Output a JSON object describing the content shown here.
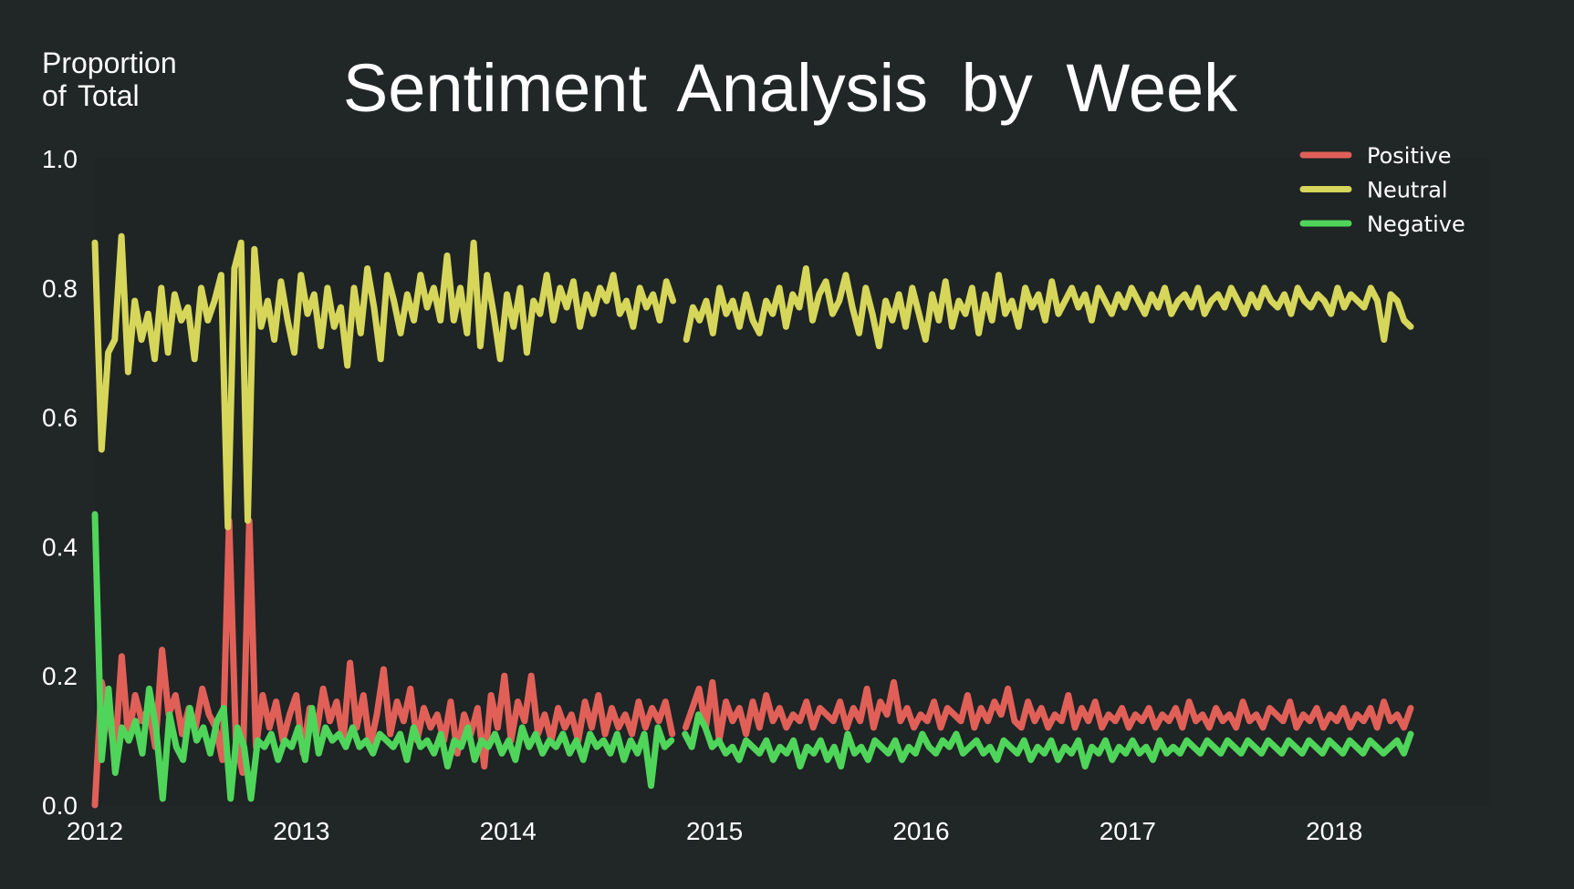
{
  "chart_data": {
    "type": "line",
    "title": "Sentiment Analysis by Week",
    "ylabel_lines": [
      "Proportion",
      "of  Total"
    ],
    "xlabel": "",
    "x_start": 2012.0,
    "x_end": 2018.37,
    "xlim": [
      2012.0,
      2018.75
    ],
    "ylim": [
      0.0,
      1.0
    ],
    "x_ticks": [
      2012,
      2013,
      2014,
      2015,
      2016,
      2017,
      2018
    ],
    "y_ticks": [
      "0.0",
      "0.2",
      "0.4",
      "0.6",
      "0.8",
      "1.0"
    ],
    "grid": false,
    "legend_position": "top-right",
    "gap": [
      2014.82,
      2014.85
    ],
    "series": [
      {
        "name": "Positive",
        "color": "#e06058",
        "values": [
          0.0,
          0.19,
          0.14,
          0.08,
          0.23,
          0.1,
          0.17,
          0.13,
          0.15,
          0.09,
          0.24,
          0.14,
          0.17,
          0.11,
          0.15,
          0.12,
          0.18,
          0.14,
          0.12,
          0.07,
          0.44,
          0.1,
          0.05,
          0.44,
          0.09,
          0.17,
          0.12,
          0.16,
          0.1,
          0.14,
          0.17,
          0.08,
          0.15,
          0.11,
          0.18,
          0.13,
          0.16,
          0.1,
          0.22,
          0.12,
          0.17,
          0.09,
          0.14,
          0.21,
          0.11,
          0.16,
          0.13,
          0.18,
          0.1,
          0.15,
          0.12,
          0.14,
          0.1,
          0.16,
          0.08,
          0.14,
          0.11,
          0.15,
          0.06,
          0.17,
          0.12,
          0.2,
          0.1,
          0.16,
          0.13,
          0.2,
          0.11,
          0.14,
          0.1,
          0.15,
          0.12,
          0.14,
          0.1,
          0.16,
          0.12,
          0.17,
          0.11,
          0.15,
          0.12,
          0.14,
          0.11,
          0.16,
          0.12,
          0.15,
          0.13,
          0.16,
          0.11,
          0.14,
          0.12,
          0.15,
          0.18,
          0.12,
          0.19,
          0.1,
          0.16,
          0.13,
          0.15,
          0.11,
          0.16,
          0.12,
          0.17,
          0.13,
          0.15,
          0.12,
          0.14,
          0.13,
          0.16,
          0.12,
          0.15,
          0.14,
          0.13,
          0.16,
          0.12,
          0.15,
          0.13,
          0.18,
          0.12,
          0.16,
          0.14,
          0.19,
          0.13,
          0.15,
          0.12,
          0.14,
          0.13,
          0.16,
          0.12,
          0.15,
          0.14,
          0.13,
          0.17,
          0.12,
          0.15,
          0.13,
          0.16,
          0.14,
          0.18,
          0.13,
          0.12,
          0.16,
          0.13,
          0.15,
          0.12,
          0.14,
          0.13,
          0.17,
          0.12,
          0.15,
          0.13,
          0.16,
          0.12,
          0.14,
          0.13,
          0.15,
          0.12,
          0.14,
          0.13,
          0.15,
          0.12,
          0.14,
          0.13,
          0.15,
          0.12,
          0.16,
          0.13,
          0.14,
          0.12,
          0.15,
          0.13,
          0.14,
          0.12,
          0.16,
          0.13,
          0.14,
          0.12,
          0.15,
          0.14,
          0.13,
          0.16,
          0.12,
          0.14,
          0.13,
          0.15,
          0.12,
          0.14,
          0.13,
          0.15,
          0.12,
          0.14,
          0.13,
          0.15,
          0.12,
          0.16,
          0.13,
          0.14,
          0.12,
          0.15
        ]
      },
      {
        "name": "Neutral",
        "color": "#d6d65a",
        "values": [
          0.87,
          0.55,
          0.7,
          0.72,
          0.88,
          0.67,
          0.78,
          0.72,
          0.76,
          0.69,
          0.8,
          0.7,
          0.79,
          0.75,
          0.77,
          0.69,
          0.8,
          0.75,
          0.78,
          0.82,
          0.43,
          0.83,
          0.87,
          0.44,
          0.86,
          0.74,
          0.78,
          0.72,
          0.81,
          0.75,
          0.7,
          0.82,
          0.76,
          0.79,
          0.71,
          0.8,
          0.74,
          0.77,
          0.68,
          0.8,
          0.73,
          0.83,
          0.77,
          0.69,
          0.82,
          0.78,
          0.73,
          0.79,
          0.75,
          0.82,
          0.77,
          0.8,
          0.75,
          0.85,
          0.75,
          0.8,
          0.73,
          0.87,
          0.71,
          0.82,
          0.76,
          0.69,
          0.79,
          0.74,
          0.8,
          0.7,
          0.78,
          0.76,
          0.82,
          0.75,
          0.8,
          0.77,
          0.81,
          0.74,
          0.79,
          0.76,
          0.8,
          0.78,
          0.82,
          0.76,
          0.78,
          0.74,
          0.8,
          0.77,
          0.79,
          0.75,
          0.81,
          0.78,
          0.76,
          0.72,
          0.77,
          0.75,
          0.78,
          0.73,
          0.8,
          0.76,
          0.78,
          0.74,
          0.79,
          0.75,
          0.73,
          0.78,
          0.76,
          0.8,
          0.74,
          0.79,
          0.77,
          0.83,
          0.75,
          0.79,
          0.81,
          0.76,
          0.78,
          0.82,
          0.77,
          0.73,
          0.8,
          0.76,
          0.71,
          0.78,
          0.75,
          0.79,
          0.74,
          0.8,
          0.76,
          0.72,
          0.79,
          0.75,
          0.81,
          0.74,
          0.78,
          0.76,
          0.8,
          0.73,
          0.79,
          0.75,
          0.82,
          0.76,
          0.78,
          0.74,
          0.8,
          0.77,
          0.79,
          0.75,
          0.81,
          0.76,
          0.78,
          0.8,
          0.77,
          0.79,
          0.75,
          0.8,
          0.78,
          0.76,
          0.79,
          0.77,
          0.8,
          0.78,
          0.76,
          0.79,
          0.77,
          0.8,
          0.76,
          0.78,
          0.79,
          0.77,
          0.8,
          0.76,
          0.78,
          0.79,
          0.77,
          0.8,
          0.78,
          0.76,
          0.79,
          0.77,
          0.8,
          0.78,
          0.77,
          0.79,
          0.76,
          0.8,
          0.78,
          0.77,
          0.79,
          0.78,
          0.76,
          0.8,
          0.77,
          0.79,
          0.78,
          0.77,
          0.8,
          0.78,
          0.72,
          0.79,
          0.78,
          0.75,
          0.74
        ]
      },
      {
        "name": "Negative",
        "color": "#4fd55a",
        "values": [
          0.45,
          0.07,
          0.18,
          0.05,
          0.12,
          0.1,
          0.13,
          0.08,
          0.18,
          0.12,
          0.01,
          0.14,
          0.09,
          0.07,
          0.15,
          0.1,
          0.12,
          0.08,
          0.13,
          0.15,
          0.01,
          0.12,
          0.09,
          0.01,
          0.1,
          0.09,
          0.11,
          0.07,
          0.1,
          0.09,
          0.12,
          0.07,
          0.15,
          0.08,
          0.12,
          0.1,
          0.11,
          0.09,
          0.12,
          0.09,
          0.1,
          0.08,
          0.11,
          0.1,
          0.09,
          0.11,
          0.07,
          0.12,
          0.09,
          0.1,
          0.08,
          0.11,
          0.06,
          0.1,
          0.09,
          0.12,
          0.07,
          0.1,
          0.09,
          0.11,
          0.08,
          0.1,
          0.07,
          0.12,
          0.09,
          0.11,
          0.08,
          0.1,
          0.09,
          0.11,
          0.08,
          0.1,
          0.07,
          0.11,
          0.09,
          0.1,
          0.08,
          0.11,
          0.07,
          0.1,
          0.08,
          0.11,
          0.03,
          0.12,
          0.09,
          0.1,
          0.08,
          0.11,
          0.09,
          0.14,
          0.12,
          0.09,
          0.1,
          0.08,
          0.09,
          0.07,
          0.1,
          0.09,
          0.08,
          0.1,
          0.07,
          0.09,
          0.08,
          0.1,
          0.06,
          0.09,
          0.08,
          0.1,
          0.07,
          0.09,
          0.06,
          0.11,
          0.08,
          0.09,
          0.07,
          0.1,
          0.09,
          0.08,
          0.1,
          0.07,
          0.09,
          0.08,
          0.11,
          0.09,
          0.08,
          0.1,
          0.09,
          0.11,
          0.08,
          0.09,
          0.1,
          0.08,
          0.09,
          0.07,
          0.1,
          0.09,
          0.08,
          0.1,
          0.07,
          0.09,
          0.08,
          0.1,
          0.07,
          0.09,
          0.08,
          0.1,
          0.06,
          0.09,
          0.08,
          0.1,
          0.07,
          0.09,
          0.08,
          0.1,
          0.08,
          0.09,
          0.07,
          0.1,
          0.08,
          0.09,
          0.08,
          0.1,
          0.09,
          0.08,
          0.1,
          0.09,
          0.08,
          0.1,
          0.09,
          0.08,
          0.1,
          0.09,
          0.08,
          0.1,
          0.09,
          0.08,
          0.1,
          0.09,
          0.08,
          0.1,
          0.09,
          0.08,
          0.1,
          0.09,
          0.08,
          0.1,
          0.09,
          0.08,
          0.1,
          0.09,
          0.08,
          0.09,
          0.1,
          0.08,
          0.11
        ]
      }
    ]
  },
  "colors": {
    "background": "#212627",
    "plot_background": "#1f2425",
    "text": "#ffffff"
  }
}
